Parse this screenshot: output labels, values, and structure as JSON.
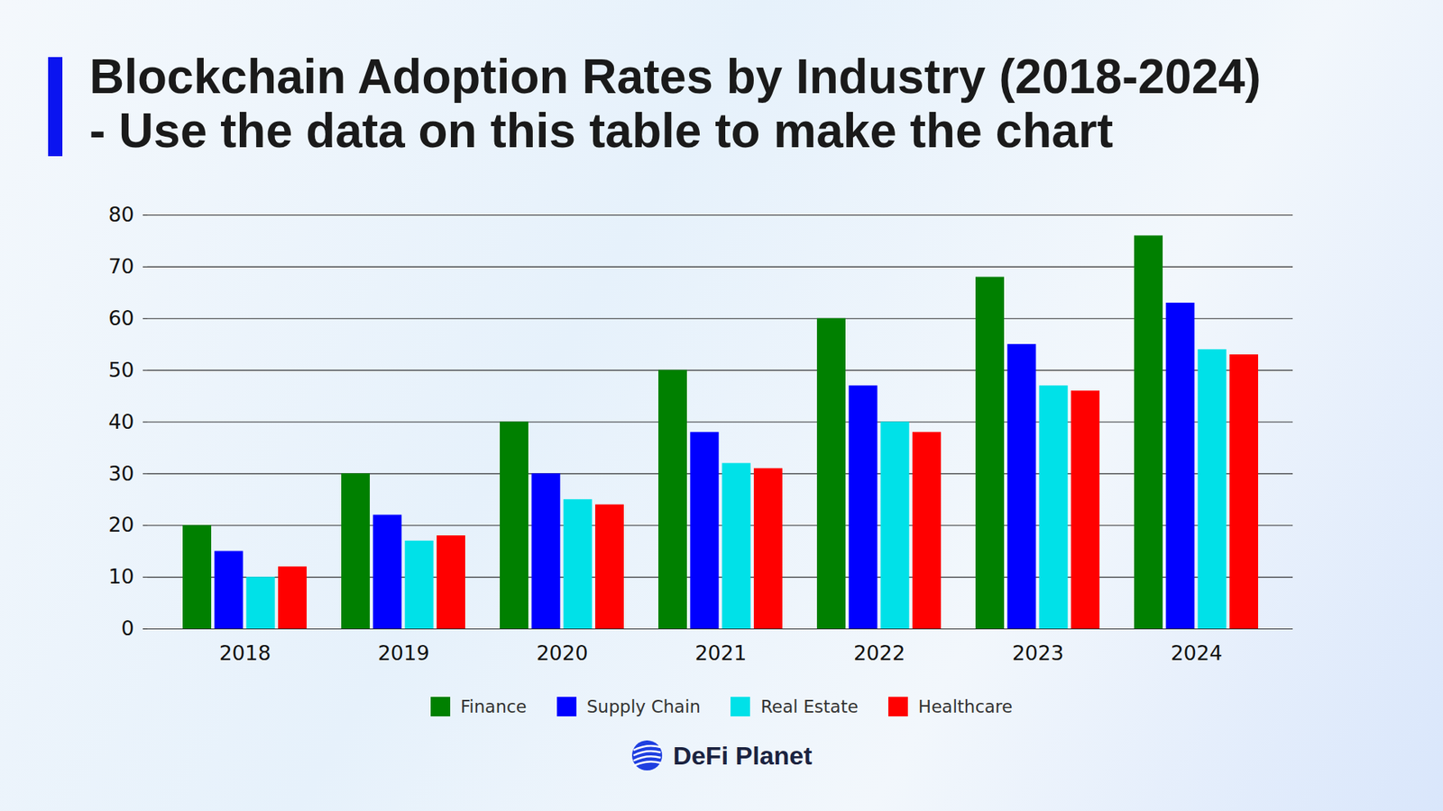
{
  "chart_data": {
    "type": "bar",
    "title": "Blockchain Adoption Rates by Industry (2018-2024) - Use the data on this table to make the chart",
    "categories": [
      "2018",
      "2019",
      "2020",
      "2021",
      "2022",
      "2023",
      "2024"
    ],
    "series": [
      {
        "name": "Finance",
        "color": "#008000",
        "values": [
          20,
          30,
          40,
          50,
          60,
          68,
          76
        ]
      },
      {
        "name": "Supply Chain",
        "color": "#0000ff",
        "values": [
          15,
          22,
          30,
          38,
          47,
          55,
          63
        ]
      },
      {
        "name": "Real Estate",
        "color": "#00e1e8",
        "values": [
          10,
          17,
          25,
          32,
          40,
          47,
          54
        ]
      },
      {
        "name": "Healthcare",
        "color": "#ff0000",
        "values": [
          12,
          18,
          24,
          31,
          38,
          46,
          53
        ]
      }
    ],
    "ylim": [
      0,
      80
    ],
    "yticks": [
      0,
      10,
      20,
      30,
      40,
      50,
      60,
      70,
      80
    ],
    "grid": true,
    "legend": "bottom",
    "caption": "DeFi Planet"
  }
}
